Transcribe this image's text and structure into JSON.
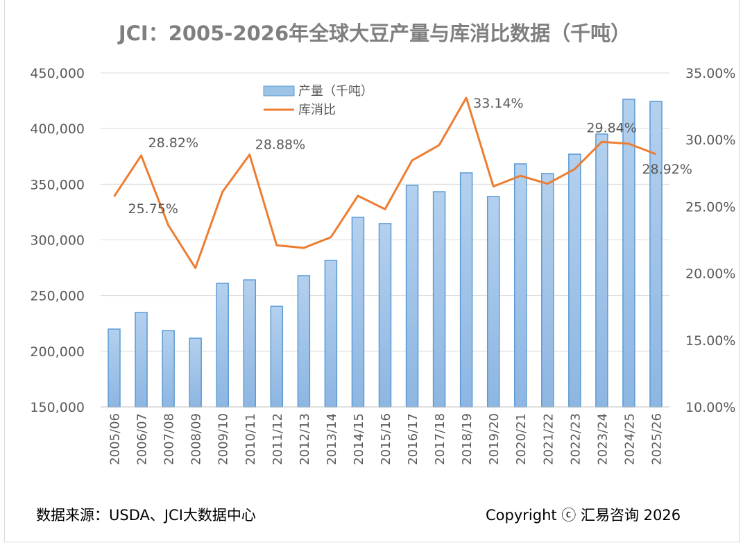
{
  "chart_data": {
    "type": "bar+line",
    "title": "JCI：2005-2026年全球大豆产量与库消比数据（千吨）",
    "categories": [
      "2005/06",
      "2006/07",
      "2007/08",
      "2008/09",
      "2009/10",
      "2010/11",
      "2011/12",
      "2012/13",
      "2013/14",
      "2014/15",
      "2015/16",
      "2016/17",
      "2017/18",
      "2018/19",
      "2019/20",
      "2020/21",
      "2021/22",
      "2022/23",
      "2023/24",
      "2024/25",
      "2025/26"
    ],
    "series": [
      {
        "name": "产量（千吨）",
        "type": "bar",
        "axis": "left",
        "color": "#9dc3e6",
        "values": [
          219900,
          234800,
          218600,
          211700,
          261000,
          264100,
          240400,
          267900,
          281600,
          320300,
          314700,
          349000,
          343300,
          360200,
          339000,
          368300,
          359600,
          377000,
          395100,
          426300,
          424400
        ]
      },
      {
        "name": "库消比",
        "type": "line",
        "axis": "right",
        "color": "#ed7d31",
        "values": [
          25.75,
          28.82,
          23.6,
          20.4,
          26.1,
          28.88,
          22.1,
          21.9,
          22.7,
          25.8,
          24.8,
          28.45,
          29.6,
          33.14,
          26.5,
          27.3,
          26.7,
          27.8,
          29.84,
          29.7,
          28.92
        ]
      }
    ],
    "data_labels": [
      {
        "index": 0,
        "text": "25.75%"
      },
      {
        "index": 1,
        "text": "28.82%"
      },
      {
        "index": 5,
        "text": "28.88%"
      },
      {
        "index": 13,
        "text": "33.14%"
      },
      {
        "index": 18,
        "text": "29.84%"
      },
      {
        "index": 20,
        "text": "28.92%"
      }
    ],
    "left_axis": {
      "ylim": [
        150000,
        450000
      ],
      "ticks": [
        "150,000",
        "200,000",
        "250,000",
        "300,000",
        "350,000",
        "400,000",
        "450,000"
      ]
    },
    "right_axis": {
      "ylim": [
        10,
        35
      ],
      "ticks": [
        "10.00%",
        "15.00%",
        "20.00%",
        "25.00%",
        "30.00%",
        "35.00%"
      ]
    },
    "grid": true,
    "legend_position": "top-center"
  },
  "footer": {
    "source": "数据来源：USDA、JCI大数据中心",
    "copyright": "Copyright ⓒ 汇易咨询 2026"
  }
}
